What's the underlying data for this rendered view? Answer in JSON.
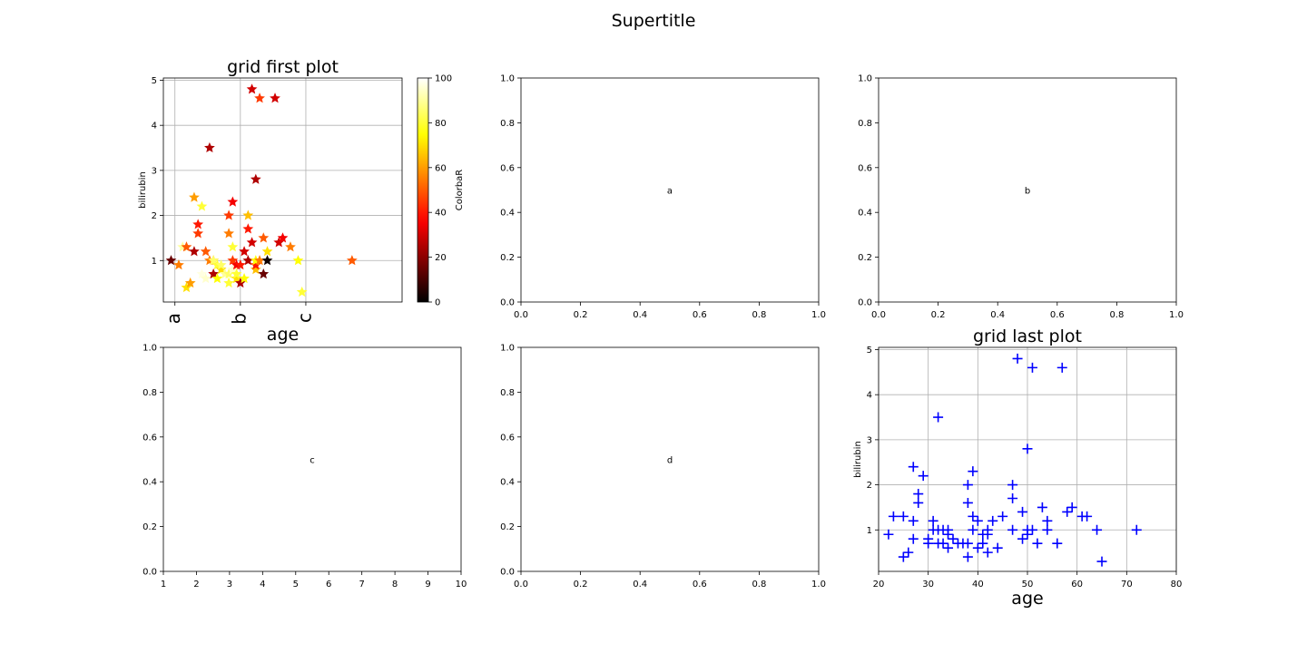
{
  "suptitle": "Supertitle",
  "colors": {
    "marker_plus": "#0000ff",
    "grid": "#b0b0b0",
    "axis": "#000000"
  },
  "chart_data": [
    {
      "id": "grid-first",
      "type": "scatter",
      "title": "grid first plot",
      "xlabel": "age",
      "ylabel": "bilirubin",
      "marker": "star",
      "colormap": "hot",
      "colorbar": {
        "label": "ColorbaR",
        "range": [
          0,
          100
        ],
        "ticks": [
          0,
          20,
          40,
          60,
          80,
          100
        ]
      },
      "xlim": [
        17,
        79
      ],
      "ylim": [
        0.08,
        5.05
      ],
      "xticks": [
        {
          "value": 20,
          "label": "a"
        },
        {
          "value": 37,
          "label": "b"
        },
        {
          "value": 54,
          "label": "c"
        }
      ],
      "yticks": [
        1,
        2,
        3,
        4,
        5
      ],
      "grid": true,
      "points": [
        {
          "x": 19,
          "y": 1.0,
          "c": 15
        },
        {
          "x": 21,
          "y": 0.9,
          "c": 55
        },
        {
          "x": 22,
          "y": 1.3,
          "c": 90
        },
        {
          "x": 23,
          "y": 0.4,
          "c": 70
        },
        {
          "x": 23,
          "y": 1.3,
          "c": 50
        },
        {
          "x": 24,
          "y": 0.5,
          "c": 60
        },
        {
          "x": 25,
          "y": 1.2,
          "c": 25
        },
        {
          "x": 25,
          "y": 2.4,
          "c": 60
        },
        {
          "x": 26,
          "y": 1.8,
          "c": 40
        },
        {
          "x": 26,
          "y": 1.6,
          "c": 45
        },
        {
          "x": 27,
          "y": 0.7,
          "c": 97
        },
        {
          "x": 27,
          "y": 2.2,
          "c": 80
        },
        {
          "x": 28,
          "y": 1.2,
          "c": 50
        },
        {
          "x": 28,
          "y": 0.6,
          "c": 95
        },
        {
          "x": 29,
          "y": 3.5,
          "c": 25
        },
        {
          "x": 29,
          "y": 1.0,
          "c": 55
        },
        {
          "x": 30,
          "y": 0.7,
          "c": 25
        },
        {
          "x": 30,
          "y": 1.0,
          "c": 60
        },
        {
          "x": 30,
          "y": 1.0,
          "c": 85
        },
        {
          "x": 31,
          "y": 0.6,
          "c": 75
        },
        {
          "x": 31,
          "y": 0.9,
          "c": 80
        },
        {
          "x": 32,
          "y": 0.8,
          "c": 70
        },
        {
          "x": 32,
          "y": 0.9,
          "c": 85
        },
        {
          "x": 33,
          "y": 0.7,
          "c": 90
        },
        {
          "x": 34,
          "y": 1.6,
          "c": 55
        },
        {
          "x": 34,
          "y": 2.0,
          "c": 45
        },
        {
          "x": 34,
          "y": 0.5,
          "c": 80
        },
        {
          "x": 34,
          "y": 0.7,
          "c": 85
        },
        {
          "x": 35,
          "y": 0.8,
          "c": 95
        },
        {
          "x": 35,
          "y": 1.3,
          "c": 80
        },
        {
          "x": 35,
          "y": 2.3,
          "c": 35
        },
        {
          "x": 35,
          "y": 1.0,
          "c": 45
        },
        {
          "x": 36,
          "y": 0.6,
          "c": 70
        },
        {
          "x": 36,
          "y": 0.7,
          "c": 80
        },
        {
          "x": 36,
          "y": 0.9,
          "c": 35
        },
        {
          "x": 37,
          "y": 0.5,
          "c": 25
        },
        {
          "x": 37,
          "y": 0.9,
          "c": 40
        },
        {
          "x": 38,
          "y": 1.2,
          "c": 30
        },
        {
          "x": 38,
          "y": 0.6,
          "c": 75
        },
        {
          "x": 39,
          "y": 1.0,
          "c": 25
        },
        {
          "x": 39,
          "y": 1.7,
          "c": 40
        },
        {
          "x": 39,
          "y": 2.0,
          "c": 65
        },
        {
          "x": 40,
          "y": 4.8,
          "c": 30
        },
        {
          "x": 40,
          "y": 1.4,
          "c": 30
        },
        {
          "x": 41,
          "y": 2.8,
          "c": 25
        },
        {
          "x": 41,
          "y": 0.8,
          "c": 65
        },
        {
          "x": 41,
          "y": 0.9,
          "c": 40
        },
        {
          "x": 41,
          "y": 1.0,
          "c": 75
        },
        {
          "x": 42,
          "y": 4.6,
          "c": 45
        },
        {
          "x": 42,
          "y": 1.0,
          "c": 55
        },
        {
          "x": 43,
          "y": 0.7,
          "c": 15
        },
        {
          "x": 43,
          "y": 1.5,
          "c": 50
        },
        {
          "x": 44,
          "y": 1.0,
          "c": 2
        },
        {
          "x": 44,
          "y": 1.2,
          "c": 70
        },
        {
          "x": 46,
          "y": 4.6,
          "c": 30
        },
        {
          "x": 47,
          "y": 1.4,
          "c": 30
        },
        {
          "x": 48,
          "y": 1.5,
          "c": 35
        },
        {
          "x": 50,
          "y": 1.3,
          "c": 55
        },
        {
          "x": 52,
          "y": 1.0,
          "c": 75
        },
        {
          "x": 53,
          "y": 0.3,
          "c": 80
        },
        {
          "x": 66,
          "y": 1.0,
          "c": 50
        }
      ]
    },
    {
      "id": "ax-a",
      "type": "scatter",
      "annotation": "a",
      "xlim": [
        0,
        1
      ],
      "ylim": [
        0,
        1
      ],
      "xticks": [
        "0.0",
        "0.2",
        "0.4",
        "0.6",
        "0.8",
        "1.0"
      ],
      "yticks": [
        "0.0",
        "0.2",
        "0.4",
        "0.6",
        "0.8",
        "1.0"
      ],
      "points": []
    },
    {
      "id": "ax-b",
      "type": "scatter",
      "annotation": "b",
      "xlim": [
        0,
        1
      ],
      "ylim": [
        0,
        1
      ],
      "xticks": [
        "0.0",
        "0.2",
        "0.4",
        "0.6",
        "0.8",
        "1.0"
      ],
      "yticks": [
        "0.0",
        "0.2",
        "0.4",
        "0.6",
        "0.8",
        "1.0"
      ],
      "points": []
    },
    {
      "id": "ax-c",
      "type": "scatter",
      "annotation": "c",
      "xlim": [
        1,
        10
      ],
      "ylim": [
        0,
        1
      ],
      "xticks": [
        "1",
        "2",
        "3",
        "4",
        "5",
        "6",
        "7",
        "8",
        "9",
        "10"
      ],
      "yticks": [
        "0.0",
        "0.2",
        "0.4",
        "0.6",
        "0.8",
        "1.0"
      ],
      "points": []
    },
    {
      "id": "ax-d",
      "type": "scatter",
      "annotation": "d",
      "xlim": [
        0,
        1
      ],
      "ylim": [
        0,
        1
      ],
      "xticks": [
        "0.0",
        "0.2",
        "0.4",
        "0.6",
        "0.8",
        "1.0"
      ],
      "yticks": [
        "0.0",
        "0.2",
        "0.4",
        "0.6",
        "0.8",
        "1.0"
      ],
      "points": []
    },
    {
      "id": "grid-last",
      "type": "scatter",
      "title": "grid last plot",
      "xlabel": "age",
      "ylabel": "bilirubin",
      "marker": "plus",
      "xlim": [
        20,
        80
      ],
      "ylim": [
        0.08,
        5.05
      ],
      "xticks": [
        20,
        30,
        40,
        50,
        60,
        70,
        80
      ],
      "yticks": [
        1,
        2,
        3,
        4,
        5
      ],
      "grid": true,
      "points": [
        {
          "x": 22,
          "y": 0.9
        },
        {
          "x": 23,
          "y": 1.3
        },
        {
          "x": 25,
          "y": 1.3
        },
        {
          "x": 25,
          "y": 0.4
        },
        {
          "x": 26,
          "y": 0.5
        },
        {
          "x": 27,
          "y": 2.4
        },
        {
          "x": 27,
          "y": 1.2
        },
        {
          "x": 27,
          "y": 0.8
        },
        {
          "x": 28,
          "y": 1.8
        },
        {
          "x": 28,
          "y": 1.6
        },
        {
          "x": 29,
          "y": 2.2
        },
        {
          "x": 30,
          "y": 0.8
        },
        {
          "x": 30,
          "y": 0.7
        },
        {
          "x": 31,
          "y": 1.2
        },
        {
          "x": 31,
          "y": 1.0
        },
        {
          "x": 32,
          "y": 3.5
        },
        {
          "x": 32,
          "y": 1.0
        },
        {
          "x": 32,
          "y": 0.7
        },
        {
          "x": 33,
          "y": 1.0
        },
        {
          "x": 33,
          "y": 0.7
        },
        {
          "x": 34,
          "y": 0.9
        },
        {
          "x": 34,
          "y": 0.6
        },
        {
          "x": 34,
          "y": 1.0
        },
        {
          "x": 35,
          "y": 0.8
        },
        {
          "x": 36,
          "y": 0.7
        },
        {
          "x": 37,
          "y": 0.7
        },
        {
          "x": 38,
          "y": 0.7
        },
        {
          "x": 38,
          "y": 0.4
        },
        {
          "x": 38,
          "y": 1.6
        },
        {
          "x": 38,
          "y": 2.0
        },
        {
          "x": 39,
          "y": 1.3
        },
        {
          "x": 39,
          "y": 2.3
        },
        {
          "x": 39,
          "y": 1.0
        },
        {
          "x": 40,
          "y": 0.6
        },
        {
          "x": 40,
          "y": 1.2
        },
        {
          "x": 41,
          "y": 0.7
        },
        {
          "x": 41,
          "y": 0.9
        },
        {
          "x": 42,
          "y": 1.0
        },
        {
          "x": 42,
          "y": 0.5
        },
        {
          "x": 42,
          "y": 0.9
        },
        {
          "x": 43,
          "y": 1.2
        },
        {
          "x": 44,
          "y": 0.6
        },
        {
          "x": 45,
          "y": 1.3
        },
        {
          "x": 47,
          "y": 2.0
        },
        {
          "x": 47,
          "y": 1.7
        },
        {
          "x": 47,
          "y": 1.0
        },
        {
          "x": 48,
          "y": 4.8
        },
        {
          "x": 49,
          "y": 1.4
        },
        {
          "x": 49,
          "y": 0.8
        },
        {
          "x": 50,
          "y": 2.8
        },
        {
          "x": 50,
          "y": 0.9
        },
        {
          "x": 50,
          "y": 1.0
        },
        {
          "x": 51,
          "y": 4.6
        },
        {
          "x": 51,
          "y": 1.0
        },
        {
          "x": 52,
          "y": 0.7
        },
        {
          "x": 53,
          "y": 1.5
        },
        {
          "x": 54,
          "y": 1.2
        },
        {
          "x": 54,
          "y": 1.0
        },
        {
          "x": 56,
          "y": 0.7
        },
        {
          "x": 57,
          "y": 4.6
        },
        {
          "x": 58,
          "y": 1.4
        },
        {
          "x": 59,
          "y": 1.5
        },
        {
          "x": 61,
          "y": 1.3
        },
        {
          "x": 62,
          "y": 1.3
        },
        {
          "x": 64,
          "y": 1.0
        },
        {
          "x": 65,
          "y": 0.3
        },
        {
          "x": 72,
          "y": 1.0
        }
      ]
    }
  ]
}
